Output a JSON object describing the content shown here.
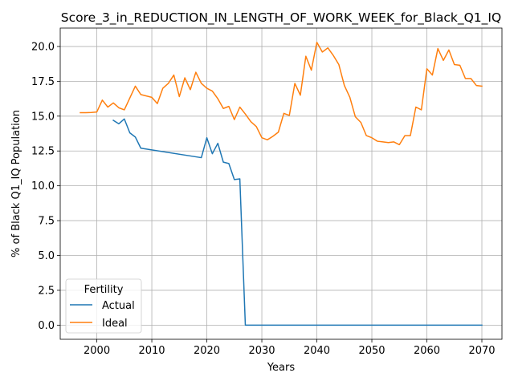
{
  "chart_data": {
    "type": "line",
    "title": "Score_3_in_REDUCTION_IN_LENGTH_OF_WORK_WEEK_for_Black_Q1_IQ",
    "xlabel": "Years",
    "ylabel": "% of Black Q1_IQ Population",
    "xlim": [
      1993.35,
      2073.65
    ],
    "ylim": [
      -1.015,
      21.32
    ],
    "xticks": [
      2000,
      2010,
      2020,
      2030,
      2040,
      2050,
      2060,
      2070
    ],
    "yticks": [
      0.0,
      2.5,
      5.0,
      7.5,
      10.0,
      12.5,
      15.0,
      17.5,
      20.0
    ],
    "ytick_labels": [
      "0.0",
      "2.5",
      "5.0",
      "7.5",
      "10.0",
      "12.5",
      "15.0",
      "17.5",
      "20.0"
    ],
    "grid": true,
    "legend": {
      "title": "Fertility",
      "position": "lower-left"
    },
    "series": [
      {
        "name": "Actual",
        "color": "#1f77b4",
        "x": [
          2003,
          2004,
          2005,
          2006,
          2007,
          2008,
          2019,
          2020,
          2021,
          2022,
          2023,
          2024,
          2025,
          2026,
          2027,
          2070
        ],
        "y": [
          14.7,
          14.45,
          14.8,
          13.8,
          13.5,
          12.7,
          12.02,
          13.45,
          12.3,
          13.05,
          11.7,
          11.6,
          10.45,
          10.5,
          0.0,
          0.0
        ]
      },
      {
        "name": "Ideal",
        "color": "#ff7f0e",
        "x": [
          1997,
          1998,
          1999,
          2000,
          2001,
          2002,
          2003,
          2004,
          2005,
          2006,
          2007,
          2008,
          2009,
          2010,
          2011,
          2012,
          2013,
          2014,
          2015,
          2016,
          2017,
          2018,
          2019,
          2020,
          2021,
          2022,
          2023,
          2024,
          2025,
          2026,
          2027,
          2028,
          2029,
          2030,
          2031,
          2032,
          2033,
          2034,
          2035,
          2036,
          2037,
          2038,
          2039,
          2040,
          2041,
          2042,
          2043,
          2044,
          2045,
          2046,
          2047,
          2048,
          2049,
          2050,
          2051,
          2052,
          2053,
          2054,
          2055,
          2056,
          2057,
          2058,
          2059,
          2060,
          2061,
          2062,
          2063,
          2064,
          2065,
          2066,
          2067,
          2068,
          2069,
          2070
        ],
        "y": [
          15.25,
          15.25,
          15.26,
          15.3,
          16.15,
          15.65,
          15.95,
          15.6,
          15.45,
          16.3,
          17.15,
          16.55,
          16.45,
          16.35,
          15.9,
          17.0,
          17.35,
          17.95,
          16.4,
          17.75,
          16.9,
          18.15,
          17.35,
          17.0,
          16.8,
          16.25,
          15.55,
          15.7,
          14.75,
          15.65,
          15.15,
          14.6,
          14.25,
          13.45,
          13.3,
          13.55,
          13.85,
          15.2,
          15.05,
          17.35,
          16.5,
          19.3,
          18.3,
          20.3,
          19.6,
          19.9,
          19.35,
          18.7,
          17.2,
          16.35,
          14.95,
          14.55,
          13.6,
          13.45,
          13.2,
          13.15,
          13.1,
          13.15,
          12.95,
          13.6,
          13.6,
          15.65,
          15.45,
          18.4,
          17.95,
          19.85,
          19.0,
          19.75,
          18.7,
          18.65,
          17.7,
          17.7,
          17.2,
          17.15
        ]
      }
    ]
  }
}
